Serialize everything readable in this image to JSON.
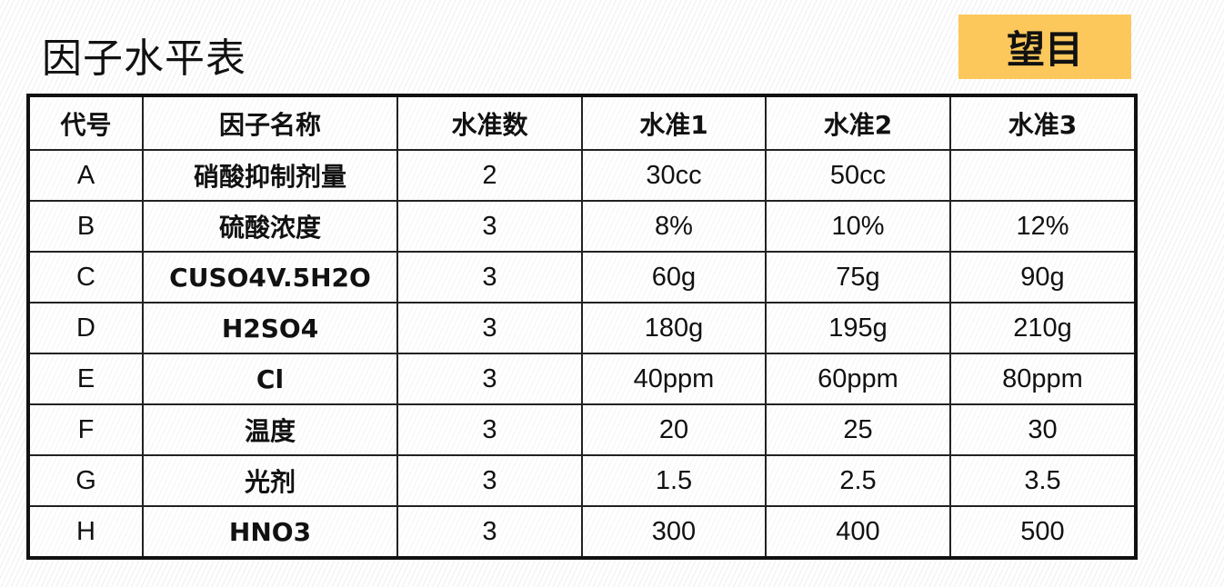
{
  "title": "因子水平表",
  "badge": {
    "label": "望目",
    "color": "#fcc85c"
  },
  "table": {
    "headers": [
      "代号",
      "因子名称",
      "水准数",
      "水准1",
      "水准2",
      "水准3"
    ],
    "rows": [
      [
        "A",
        "硝酸抑制剂量",
        "2",
        "30cc",
        "50cc",
        ""
      ],
      [
        "B",
        "硫酸浓度",
        "3",
        "8%",
        "10%",
        "12%"
      ],
      [
        "C",
        "CUSO4V.5H2O",
        "3",
        "60g",
        "75g",
        "90g"
      ],
      [
        "D",
        "H2SO4",
        "3",
        "180g",
        "195g",
        "210g"
      ],
      [
        "E",
        "Cl",
        "3",
        "40ppm",
        "60ppm",
        "80ppm"
      ],
      [
        "F",
        "温度",
        "3",
        "20",
        "25",
        "30"
      ],
      [
        "G",
        "光剂",
        "3",
        "1.5",
        "2.5",
        "3.5"
      ],
      [
        "H",
        "HNO3",
        "3",
        "300",
        "400",
        "500"
      ]
    ]
  }
}
